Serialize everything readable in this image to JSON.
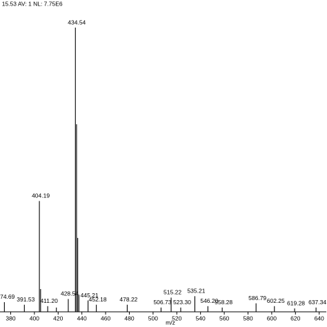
{
  "chart_data": {
    "type": "stick",
    "subtitle": ": 15.53  AV: 1  NL: 7.75E6",
    "x_label": "m/z",
    "xlim": [
      371,
      646
    ],
    "xticks": [
      380,
      400,
      420,
      440,
      460,
      480,
      500,
      520,
      540,
      560,
      580,
      600,
      620,
      640
    ],
    "ylim": [
      0,
      100
    ],
    "color": "#000000",
    "x": [
      374.69,
      391.53,
      404.19,
      405.2,
      411.2,
      418.5,
      428.54,
      434.54,
      435.5,
      436.5,
      437.5,
      445.21,
      452.18,
      478.22,
      506.73,
      515.22,
      523.3,
      535.21,
      546.2,
      558.28,
      586.79,
      602.25,
      619.28,
      637.34
    ],
    "values": [
      3.4,
      2.5,
      39,
      8,
      2,
      1.5,
      4.5,
      100,
      66,
      26,
      6,
      4,
      2.5,
      2.5,
      1.5,
      5,
      1.5,
      5.5,
      2,
      1.5,
      3,
      2,
      1.2,
      1.5
    ],
    "x_labels": [
      "374.69",
      "391.53",
      "404.19",
      null,
      "411.20",
      null,
      "428.54",
      "434.54",
      null,
      null,
      null,
      "445.21",
      "452.18",
      "478.22",
      "506.73",
      "515.22",
      "523.30",
      "535.21",
      "546.20",
      "558.28",
      "586.79",
      "602.25",
      "619.28",
      "637.34"
    ]
  }
}
